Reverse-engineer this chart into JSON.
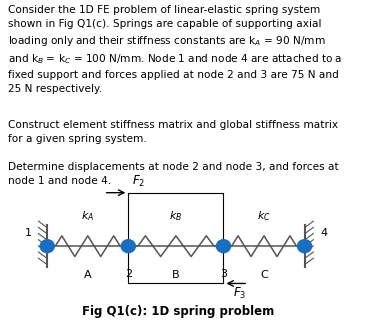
{
  "title": "Fig Q1(c): 1D spring problem",
  "bg_color": "#ffffff",
  "text_color": "#000000",
  "node_color": "#1a6ebf",
  "spring_color": "#555555",
  "node_labels": [
    "1",
    "2",
    "3",
    "4"
  ],
  "element_labels": [
    "A",
    "B",
    "C"
  ],
  "spring_label_names": [
    "k_A",
    "k_B",
    "k_C"
  ],
  "force_label_2": "F_2",
  "force_label_3": "F_3"
}
